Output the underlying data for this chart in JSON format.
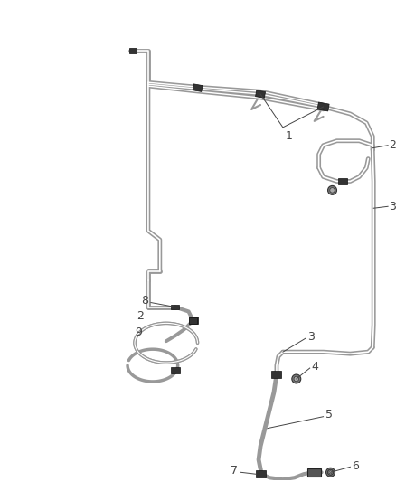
{
  "background_color": "#ffffff",
  "line_color": "#999999",
  "dark_line_color": "#444444",
  "clip_color": "#333333",
  "fig_width": 4.38,
  "fig_height": 5.33,
  "dpi": 100
}
